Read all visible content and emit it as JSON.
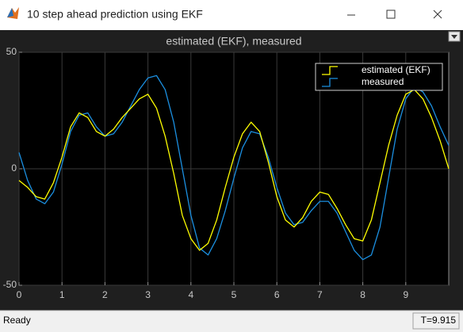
{
  "window": {
    "title": "10 step ahead prediction  using EKF",
    "status": "Ready",
    "time": "T=9.915"
  },
  "chart_data": {
    "type": "line",
    "title": "estimated (EKF), measured",
    "x": [
      0,
      0.2,
      0.4,
      0.6,
      0.8,
      1,
      1.2,
      1.4,
      1.6,
      1.8,
      2,
      2.2,
      2.4,
      2.6,
      2.8,
      3,
      3.2,
      3.4,
      3.6,
      3.8,
      4,
      4.2,
      4.4,
      4.6,
      4.8,
      5,
      5.2,
      5.4,
      5.6,
      5.8,
      6,
      6.2,
      6.4,
      6.6,
      6.8,
      7,
      7.2,
      7.4,
      7.6,
      7.8,
      8,
      8.2,
      8.4,
      8.6,
      8.8,
      9,
      9.2,
      9.4,
      9.6,
      9.8,
      10
    ],
    "series": [
      {
        "name": "estimated (EKF)",
        "color": "#ffff00",
        "values": [
          -5,
          -8,
          -12,
          -13,
          -6,
          5,
          18,
          24,
          22,
          16,
          14,
          17,
          22,
          26,
          30,
          32,
          26,
          14,
          -2,
          -20,
          -30,
          -35,
          -32,
          -22,
          -8,
          5,
          15,
          20,
          16,
          3,
          -12,
          -22,
          -25,
          -21,
          -14,
          -10,
          -11,
          -17,
          -24,
          -30,
          -31,
          -22,
          -6,
          10,
          23,
          32,
          34,
          30,
          22,
          12,
          0
        ]
      },
      {
        "name": "measured",
        "color": "#1b8fe0",
        "values": [
          7,
          -5,
          -13,
          -15,
          -10,
          2,
          16,
          23,
          24,
          18,
          14,
          15,
          20,
          27,
          34,
          39,
          40,
          34,
          20,
          0,
          -20,
          -34,
          -37,
          -30,
          -18,
          -4,
          9,
          16,
          15,
          5,
          -8,
          -19,
          -24,
          -23,
          -18,
          -14,
          -14,
          -19,
          -27,
          -35,
          -39,
          -37,
          -25,
          -4,
          17,
          30,
          35,
          33,
          27,
          18,
          10
        ]
      }
    ],
    "xlim": [
      0,
      10
    ],
    "xticks": [
      0,
      1,
      2,
      3,
      4,
      5,
      6,
      7,
      8,
      9
    ],
    "ylim": [
      -50,
      50
    ],
    "yticks": [
      -50,
      0,
      50
    ],
    "grid": true,
    "legend": "upper right"
  }
}
